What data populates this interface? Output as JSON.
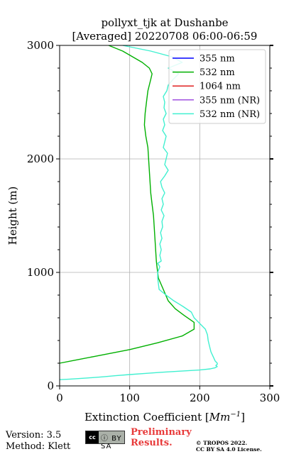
{
  "chart_data": {
    "type": "line",
    "title_line1": "pollyxt_tjk at Dushanbe",
    "title_line2": "[Averaged] 20220708 06:00-06:59",
    "xlabel": "Extinction Coefficient [Mm^-1]",
    "xlabel_prefix": "Extinction Coefficient [",
    "xlabel_unit": "Mm",
    "xlabel_exp": "−1",
    "xlabel_suffix": "]",
    "ylabel": "Height (m)",
    "xlim": [
      0,
      300
    ],
    "ylim": [
      0,
      3000
    ],
    "x_ticks": [
      "0",
      "100",
      "200",
      "300"
    ],
    "y_ticks": [
      "0",
      "1000",
      "2000",
      "3000"
    ],
    "grid": true,
    "legend_position": "top-right",
    "series": [
      {
        "name": "355 nm",
        "color": "#0000ff",
        "height": [],
        "values": []
      },
      {
        "name": "532 nm",
        "color": "#00b000",
        "height": [
          200,
          260,
          320,
          380,
          440,
          500,
          560,
          620,
          680,
          750,
          850,
          950,
          1000,
          1050,
          1100,
          1200,
          1300,
          1400,
          1500,
          1600,
          1700,
          1800,
          1900,
          2000,
          2100,
          2200,
          2300,
          2400,
          2500,
          2600,
          2700,
          2750,
          2800,
          2850,
          2900,
          2950,
          3000
        ],
        "values": [
          0,
          50,
          100,
          140,
          175,
          192,
          192,
          178,
          165,
          155,
          148,
          141,
          140,
          139,
          138,
          137,
          136,
          135,
          134,
          132,
          130,
          129,
          128,
          127,
          126,
          123,
          121,
          122,
          124,
          126,
          130,
          132,
          128,
          118,
          104,
          90,
          70
        ]
      },
      {
        "name": "1064 nm",
        "color": "#e02020",
        "height": [],
        "values": []
      },
      {
        "name": "355 nm (NR)",
        "color": "#a050e0",
        "height": [],
        "values": []
      },
      {
        "name": "532 nm (NR)",
        "color": "#40f0d0",
        "height": [
          55,
          60,
          70,
          80,
          90,
          100,
          110,
          120,
          130,
          140,
          150,
          160,
          170,
          180,
          190,
          200,
          220,
          260,
          300,
          350,
          400,
          450,
          500,
          550,
          600,
          650,
          700,
          750,
          800,
          850,
          900,
          950,
          1000,
          1050,
          1080,
          1100,
          1150,
          1200,
          1250,
          1300,
          1350,
          1400,
          1450,
          1500,
          1550,
          1600,
          1650,
          1700,
          1750,
          1800,
          1850,
          1900,
          1950,
          2000,
          2050,
          2100,
          2150,
          2200,
          2250,
          2300,
          2350,
          2400,
          2450,
          2500,
          2550,
          2600,
          2650,
          2700,
          2750,
          2800,
          2850,
          2900,
          2950,
          3000
        ],
        "values": [
          0,
          15,
          40,
          62,
          80,
          100,
          122,
          145,
          172,
          200,
          215,
          222,
          225,
          223,
          225,
          225,
          222,
          219,
          216,
          214,
          212,
          211,
          208,
          200,
          192,
          188,
          176,
          163,
          152,
          142,
          141,
          140,
          140,
          143,
          140,
          145,
          143,
          145,
          143,
          146,
          144,
          147,
          146,
          149,
          145,
          148,
          146,
          150,
          146,
          144,
          150,
          155,
          150,
          152,
          154,
          148,
          150,
          152,
          147,
          150,
          148,
          152,
          149,
          150,
          148,
          153,
          155,
          162,
          170,
          155,
          175,
          160,
          130,
          90
        ]
      }
    ]
  },
  "footer": {
    "version": "Version: 3.5",
    "method": "Method: Klett",
    "cc_logo": "cc",
    "cc_icons": "ⓘ BY SA",
    "preliminary_line1": "Preliminary",
    "preliminary_line2": "Results.",
    "tropos_line1": "© TROPOS 2022.",
    "tropos_line2": "CC BY SA 4.0 License."
  }
}
